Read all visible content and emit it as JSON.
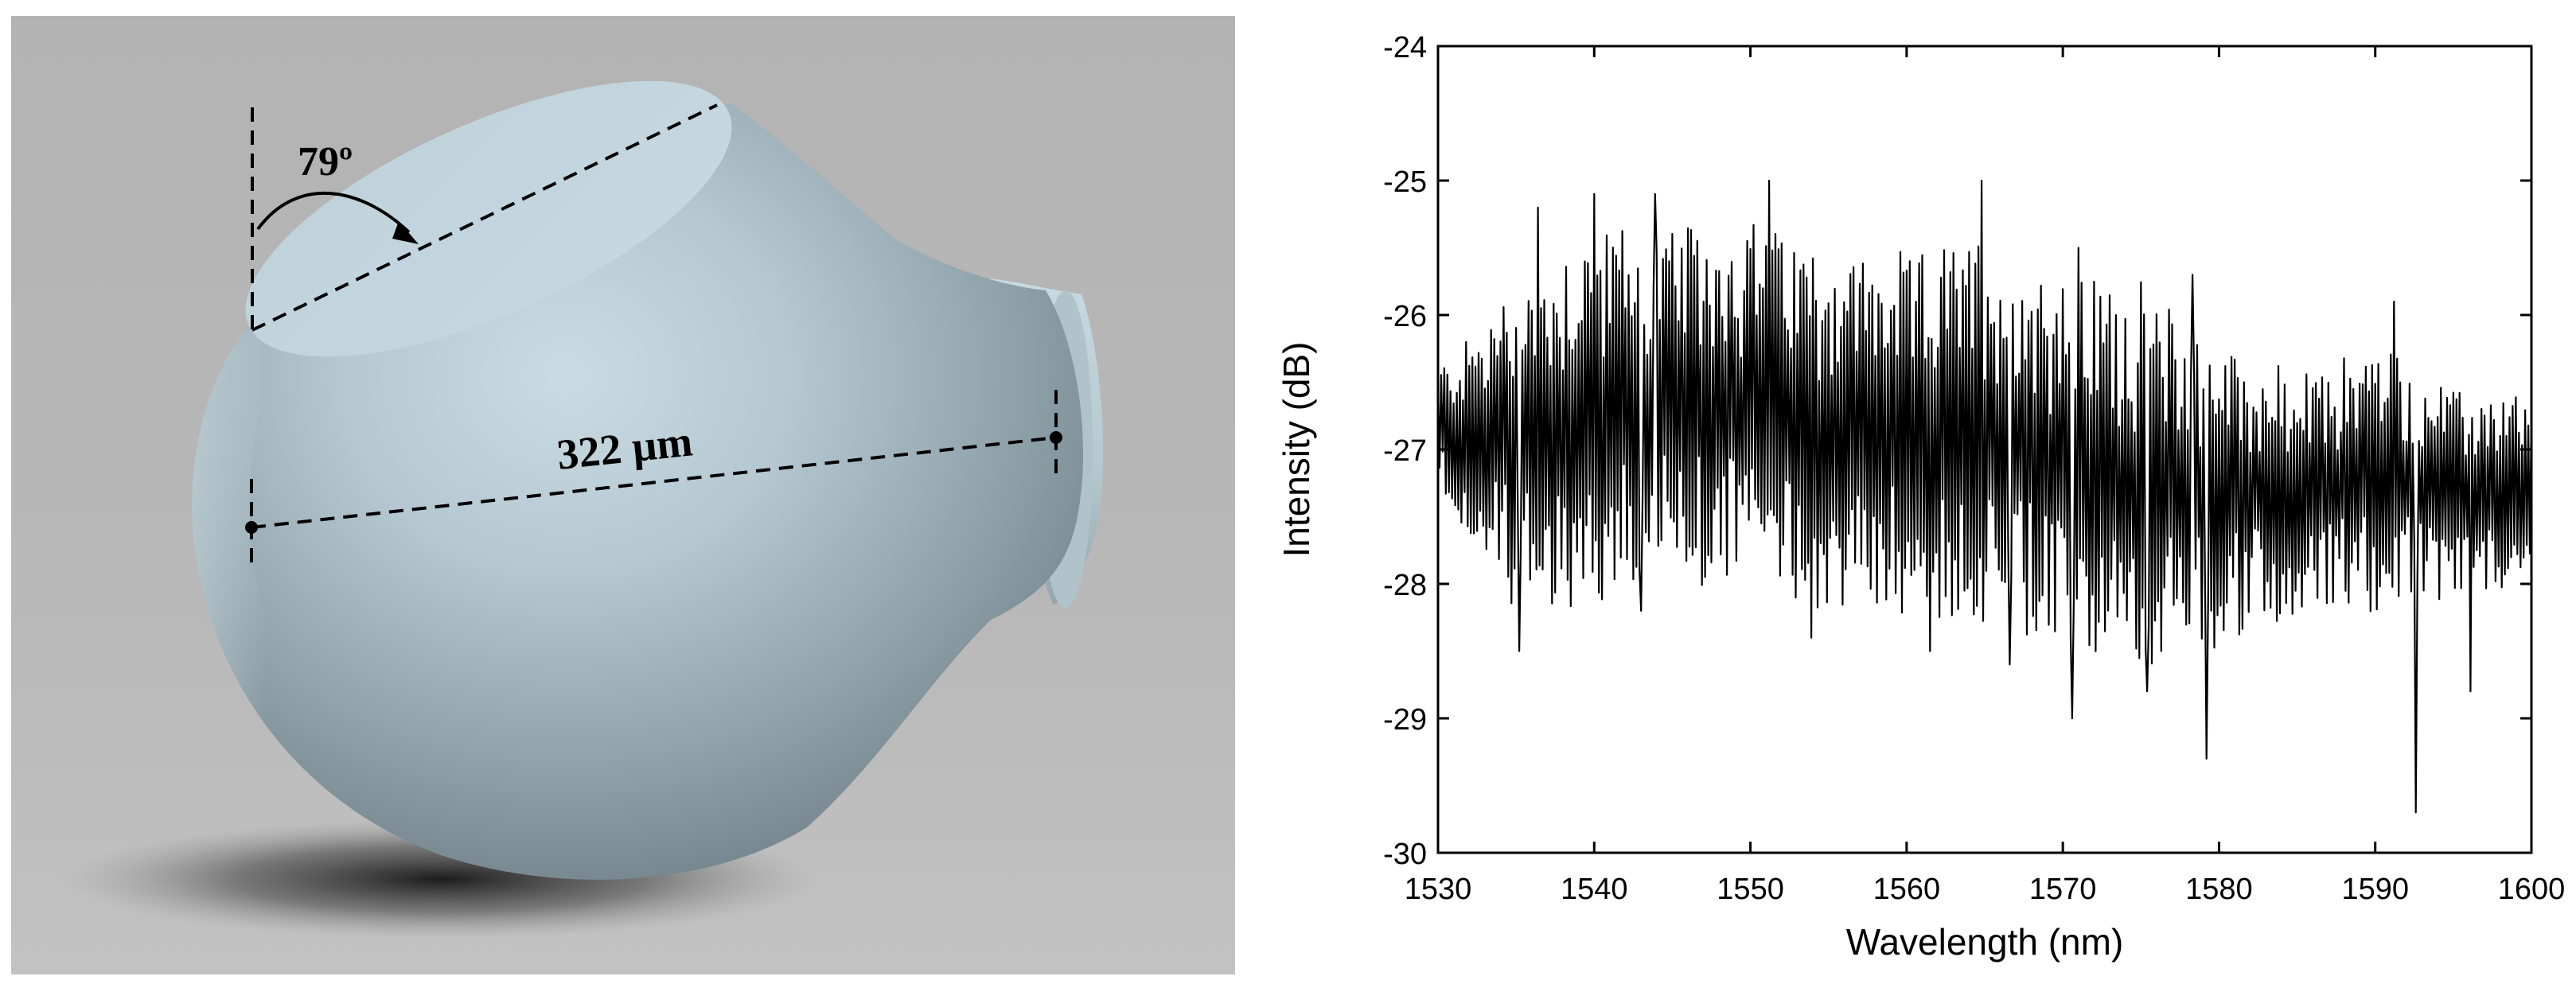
{
  "render": {
    "angle_label": "79º",
    "diameter_label": "322 µm"
  },
  "colors": {
    "background_gray": "#b9b9b9",
    "sphere_light": "#c4d6de",
    "sphere_dark": "#6e7f87",
    "trace": "#000000"
  },
  "chart_data": {
    "type": "line",
    "xlabel": "Wavelength (nm)",
    "ylabel": "Intensity (dB)",
    "xlim": [
      1530,
      1600
    ],
    "ylim": [
      -30,
      -24
    ],
    "xticks": [
      1530,
      1540,
      1550,
      1560,
      1570,
      1580,
      1590,
      1600
    ],
    "yticks": [
      -30,
      -29,
      -28,
      -27,
      -26,
      -25,
      -24
    ],
    "grid": false,
    "legend": "none",
    "sampling_step_nm": 0.1,
    "envelope": [
      {
        "x": 1530,
        "upper": -26.4,
        "lower": -27.3
      },
      {
        "x": 1535,
        "upper": -25.8,
        "lower": -28.2
      },
      {
        "x": 1540,
        "upper": -25.3,
        "lower": -28.2
      },
      {
        "x": 1545,
        "upper": -25.4,
        "lower": -28.0
      },
      {
        "x": 1550,
        "upper": -25.3,
        "lower": -28.0
      },
      {
        "x": 1555,
        "upper": -25.5,
        "lower": -28.2
      },
      {
        "x": 1560,
        "upper": -25.6,
        "lower": -28.2
      },
      {
        "x": 1565,
        "upper": -25.4,
        "lower": -28.3
      },
      {
        "x": 1570,
        "upper": -25.7,
        "lower": -28.5
      },
      {
        "x": 1575,
        "upper": -25.8,
        "lower": -28.6
      },
      {
        "x": 1580,
        "upper": -26.2,
        "lower": -28.5
      },
      {
        "x": 1585,
        "upper": -26.5,
        "lower": -28.2
      },
      {
        "x": 1590,
        "upper": -26.2,
        "lower": -28.2
      },
      {
        "x": 1595,
        "upper": -26.6,
        "lower": -28.1
      },
      {
        "x": 1600,
        "upper": -26.6,
        "lower": -27.9
      }
    ],
    "peaks": [
      {
        "x": 1536.4,
        "y": -25.2
      },
      {
        "x": 1540.0,
        "y": -25.1
      },
      {
        "x": 1543.9,
        "y": -25.1
      },
      {
        "x": 1551.2,
        "y": -25.0
      },
      {
        "x": 1564.8,
        "y": -25.0
      },
      {
        "x": 1571.0,
        "y": -25.5
      },
      {
        "x": 1578.3,
        "y": -25.7
      },
      {
        "x": 1591.2,
        "y": -25.9
      }
    ],
    "dips": [
      {
        "x": 1535.2,
        "y": -28.5
      },
      {
        "x": 1543.0,
        "y": -28.2
      },
      {
        "x": 1553.9,
        "y": -28.4
      },
      {
        "x": 1561.5,
        "y": -28.5
      },
      {
        "x": 1566.6,
        "y": -28.6
      },
      {
        "x": 1570.6,
        "y": -29.0
      },
      {
        "x": 1575.4,
        "y": -28.8
      },
      {
        "x": 1579.2,
        "y": -29.3
      },
      {
        "x": 1592.6,
        "y": -29.7
      },
      {
        "x": 1596.1,
        "y": -28.8
      }
    ]
  }
}
